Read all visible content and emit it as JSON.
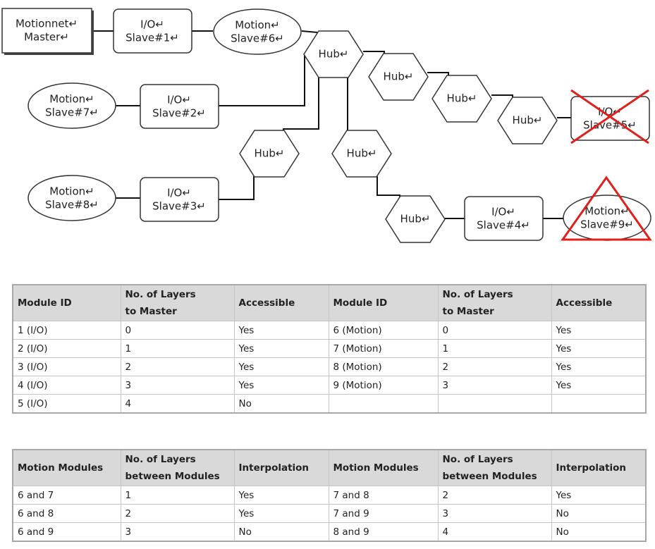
{
  "nodes": [
    {
      "lines": [
        "Motionnet↵",
        "Master↵"
      ]
    },
    {
      "lines": [
        "I/O↵",
        "Slave#1↵"
      ]
    },
    {
      "lines": [
        "Motion↵",
        "Slave#6↵"
      ]
    },
    {
      "lines": [
        "Hub↵"
      ]
    },
    {
      "lines": [
        "Hub↵"
      ]
    },
    {
      "lines": [
        "Hub↵"
      ]
    },
    {
      "lines": [
        "Hub↵"
      ]
    },
    {
      "lines": [
        "I/O↵",
        "Slave#5↵"
      ]
    },
    {
      "lines": [
        "Motion↵",
        "Slave#7↵"
      ]
    },
    {
      "lines": [
        "I/O↵",
        "Slave#2↵"
      ]
    },
    {
      "lines": [
        "Hub↵"
      ]
    },
    {
      "lines": [
        "Hub↵"
      ]
    },
    {
      "lines": [
        "Motion↵",
        "Slave#8↵"
      ]
    },
    {
      "lines": [
        "I/O↵",
        "Slave#3↵"
      ]
    },
    {
      "lines": [
        "Hub↵"
      ]
    },
    {
      "lines": [
        "I/O↵",
        "Slave#4↵"
      ]
    },
    {
      "lines": [
        "Motion↵",
        "Slave#9↵"
      ]
    }
  ],
  "tables": [
    {
      "header": [
        [
          "Module ID"
        ],
        [
          "No. of Layers",
          "to Master"
        ],
        [
          "Accessible"
        ],
        [
          "Module ID"
        ],
        [
          "No. of Layers",
          "to Master"
        ],
        [
          "Accessible"
        ]
      ],
      "rows": [
        [
          "1 (I/O)",
          "0",
          "Yes",
          "6 (Motion)",
          "0",
          "Yes"
        ],
        [
          "2 (I/O)",
          "1",
          "Yes",
          "7 (Motion)",
          "1",
          "Yes"
        ],
        [
          "3 (I/O)",
          "2",
          "Yes",
          "8 (Motion)",
          "2",
          "Yes"
        ],
        [
          "4 (I/O)",
          "3",
          "Yes",
          "9 (Motion)",
          "3",
          "Yes"
        ],
        [
          "5 (I/O)",
          "4",
          "No"
        ]
      ]
    },
    {
      "header": [
        [
          "Motion Modules"
        ],
        [
          "No. of Layers",
          "between Modules"
        ],
        [
          "Interpolation"
        ],
        [
          "Motion Modules"
        ],
        [
          "No. of Layers",
          "between Modules"
        ],
        [
          "Interpolation"
        ]
      ],
      "rows": [
        [
          "6 and 7",
          "1",
          "Yes",
          "7 and 8",
          "2",
          "Yes"
        ],
        [
          "6 and 8",
          "2",
          "Yes",
          "7 and 9",
          "3",
          "No"
        ],
        [
          "6 and 9",
          "3",
          "No",
          "8 and 9",
          "4",
          "No"
        ]
      ]
    }
  ]
}
